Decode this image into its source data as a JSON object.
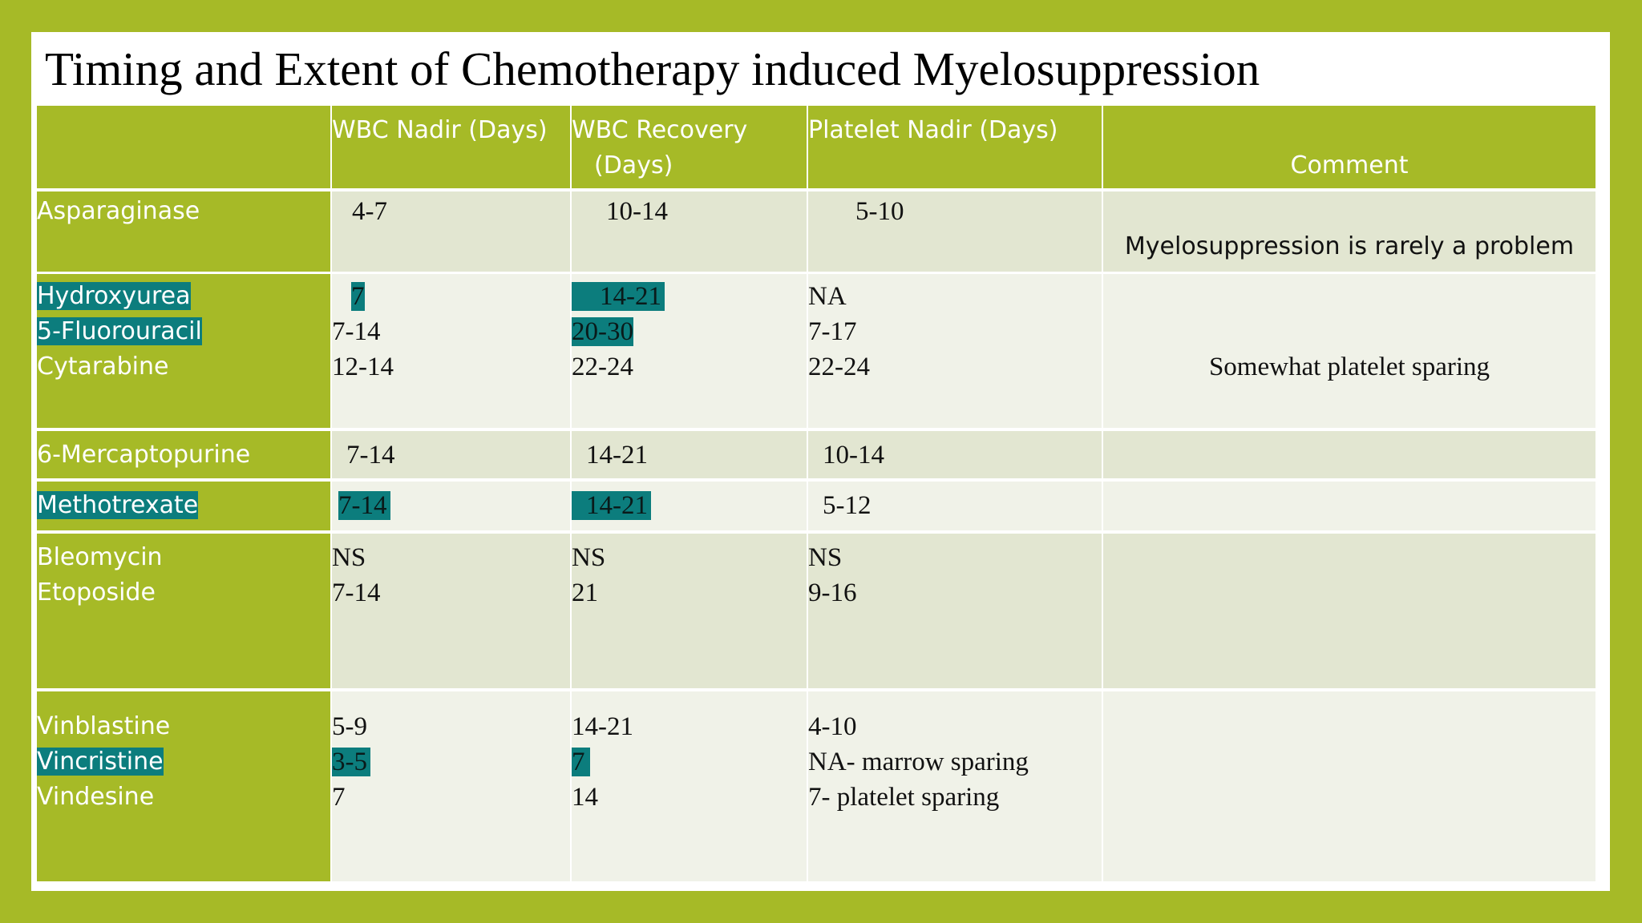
{
  "title": "Timing and Extent of Chemotherapy induced Myelosuppression",
  "colors": {
    "accent": "#a6ba27",
    "highlight": "#0c7d7d",
    "row_dark": "#e2e6d1",
    "row_light": "#f0f2e8"
  },
  "headers": {
    "drug": "",
    "wbc_nadir": "WBC Nadir (Days)",
    "wbc_recovery_1": "WBC Recovery",
    "wbc_recovery_2": "(Days)",
    "platelet_nadir": "Platelet Nadir (Days)",
    "comment": "Comment"
  },
  "rows": [
    {
      "drugs": [
        "Asparaginase"
      ],
      "wbc_nadir": [
        "4-7"
      ],
      "wbc_recovery": [
        "10-14"
      ],
      "platelet_nadir": [
        "5-10"
      ],
      "comment": "Myelosuppression is rarely a problem"
    },
    {
      "drugs": [
        "Hydroxyurea",
        "5-Fluorouracil",
        "Cytarabine"
      ],
      "wbc_nadir": [
        "7",
        "7-14",
        "12-14"
      ],
      "wbc_recovery": [
        "14-21",
        "20-30",
        "22-24"
      ],
      "platelet_nadir": [
        "NA",
        "7-17",
        "22-24"
      ],
      "comment": "Somewhat platelet sparing"
    },
    {
      "drugs": [
        "6-Mercaptopurine"
      ],
      "wbc_nadir": [
        "7-14"
      ],
      "wbc_recovery": [
        "14-21"
      ],
      "platelet_nadir": [
        "10-14"
      ],
      "comment": ""
    },
    {
      "drugs": [
        "Methotrexate"
      ],
      "wbc_nadir": [
        "7-14"
      ],
      "wbc_recovery": [
        "14-21"
      ],
      "platelet_nadir": [
        "5-12"
      ],
      "comment": ""
    },
    {
      "drugs": [
        "Bleomycin",
        "Etoposide"
      ],
      "wbc_nadir": [
        "NS",
        "7-14"
      ],
      "wbc_recovery": [
        "NS",
        "21"
      ],
      "platelet_nadir": [
        "NS",
        "9-16"
      ],
      "comment": ""
    },
    {
      "drugs": [
        "Vinblastine",
        "Vincristine",
        "Vindesine"
      ],
      "wbc_nadir": [
        "5-9",
        "3-5",
        "7"
      ],
      "wbc_recovery": [
        "14-21",
        "7",
        "14"
      ],
      "platelet_nadir": [
        "4-10",
        "NA- marrow sparing",
        "7- platelet sparing"
      ],
      "comment": ""
    }
  ]
}
